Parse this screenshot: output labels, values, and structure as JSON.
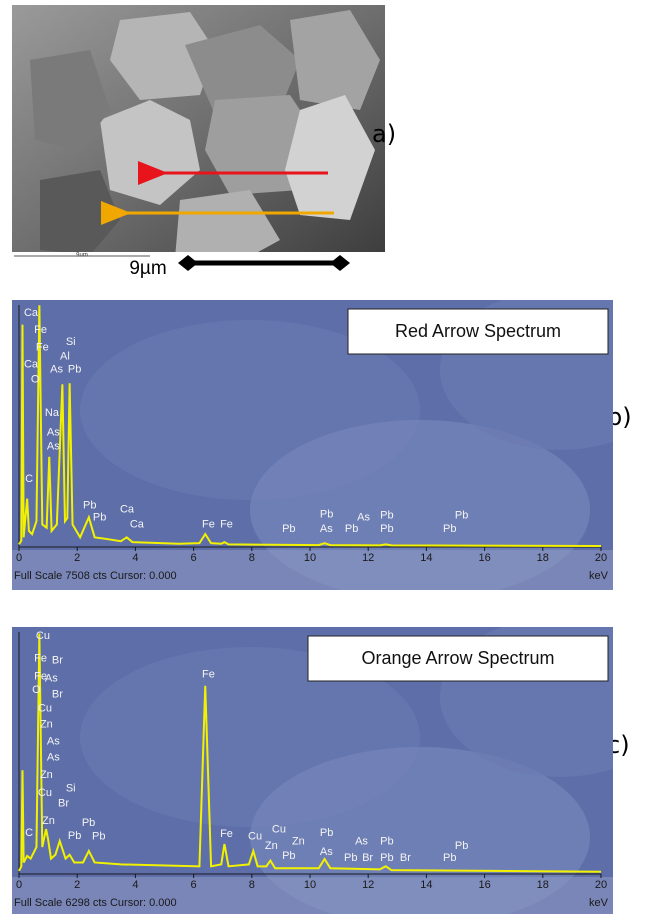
{
  "panels": {
    "a": "a)",
    "b": "b)",
    "c": "c)"
  },
  "sem": {
    "scale_label": "9µm",
    "scale_label_small": "9um"
  },
  "chart_data": [
    {
      "type": "line",
      "title": "Red Arrow Spectrum",
      "footer": "Full Scale 7508 cts Cursor: 0.000",
      "x_label": "keV",
      "xlim": [
        0,
        20
      ],
      "xticks": [
        0,
        2,
        4,
        6,
        8,
        10,
        12,
        14,
        16,
        18,
        20
      ],
      "ylim": [
        0,
        7508
      ],
      "color": "#f2f200",
      "x": [
        0,
        0.08,
        0.12,
        0.16,
        0.22,
        0.28,
        0.34,
        0.45,
        0.6,
        0.7,
        0.8,
        0.95,
        1.04,
        1.12,
        1.3,
        1.49,
        1.58,
        1.66,
        1.74,
        1.84,
        2.1,
        2.4,
        2.6,
        3.0,
        3.5,
        3.7,
        3.9,
        5.5,
        6.2,
        6.4,
        6.6,
        6.95,
        7.06,
        7.2,
        10.3,
        10.5,
        10.7,
        12.4,
        12.6,
        12.8,
        20
      ],
      "values": [
        80,
        200,
        6900,
        300,
        900,
        1500,
        500,
        400,
        800,
        7500,
        700,
        600,
        2800,
        500,
        700,
        5050,
        800,
        900,
        5080,
        700,
        300,
        920,
        300,
        250,
        180,
        300,
        150,
        100,
        120,
        400,
        120,
        100,
        150,
        80,
        60,
        120,
        60,
        50,
        80,
        50,
        30
      ],
      "annotations": [
        {
          "text": "Ca",
          "x": 0.17,
          "y": 7250
        },
        {
          "text": "Fe",
          "x": 0.52,
          "y": 6730
        },
        {
          "text": "Fe",
          "x": 0.58,
          "y": 6180
        },
        {
          "text": "Ca",
          "x": 0.17,
          "y": 5660
        },
        {
          "text": "O",
          "x": 0.41,
          "y": 5200
        },
        {
          "text": "Si",
          "x": 1.61,
          "y": 6360
        },
        {
          "text": "Al",
          "x": 1.41,
          "y": 5910
        },
        {
          "text": "As",
          "x": 1.07,
          "y": 5510
        },
        {
          "text": "Pb",
          "x": 1.68,
          "y": 5510
        },
        {
          "text": "Na",
          "x": 0.89,
          "y": 4160
        },
        {
          "text": "As",
          "x": 0.96,
          "y": 3550
        },
        {
          "text": "As",
          "x": 0.96,
          "y": 3120
        },
        {
          "text": "C",
          "x": 0.21,
          "y": 2110
        },
        {
          "text": "Pb",
          "x": 2.2,
          "y": 1290
        },
        {
          "text": "Pb",
          "x": 2.54,
          "y": 920
        },
        {
          "text": "Ca",
          "x": 3.47,
          "y": 1160
        },
        {
          "text": "Ca",
          "x": 3.81,
          "y": 700
        },
        {
          "text": "Fe",
          "x": 6.29,
          "y": 700
        },
        {
          "text": "Fe",
          "x": 6.91,
          "y": 700
        },
        {
          "text": "Pb",
          "x": 9.04,
          "y": 550
        },
        {
          "text": "Pb",
          "x": 10.34,
          "y": 1010
        },
        {
          "text": "As",
          "x": 10.34,
          "y": 550
        },
        {
          "text": "Pb",
          "x": 11.2,
          "y": 550
        },
        {
          "text": "As",
          "x": 11.62,
          "y": 920
        },
        {
          "text": "Pb",
          "x": 12.41,
          "y": 980
        },
        {
          "text": "Pb",
          "x": 12.41,
          "y": 550
        },
        {
          "text": "Pb",
          "x": 14.98,
          "y": 980
        },
        {
          "text": "Pb",
          "x": 14.57,
          "y": 550
        }
      ]
    },
    {
      "type": "line",
      "title": "Orange Arrow Spectrum",
      "footer": "Full Scale 6298 cts Cursor: 0.000",
      "x_label": "keV",
      "xlim": [
        0,
        20
      ],
      "xticks": [
        0,
        2,
        4,
        6,
        8,
        10,
        12,
        14,
        16,
        18,
        20
      ],
      "ylim": [
        0,
        6298
      ],
      "color": "#f2f200",
      "x": [
        0,
        0.08,
        0.12,
        0.16,
        0.28,
        0.4,
        0.6,
        0.7,
        0.8,
        0.93,
        1.0,
        1.1,
        1.25,
        1.4,
        1.6,
        1.74,
        1.9,
        2.2,
        2.4,
        2.6,
        3.5,
        6.2,
        6.4,
        6.6,
        6.95,
        7.06,
        7.2,
        7.9,
        8.05,
        8.2,
        8.5,
        8.64,
        8.8,
        10.3,
        10.5,
        10.7,
        12.4,
        12.6,
        12.8,
        20
      ],
      "values": [
        80,
        200,
        2700,
        300,
        470,
        400,
        700,
        6260,
        700,
        1170,
        900,
        400,
        500,
        860,
        400,
        500,
        300,
        300,
        600,
        300,
        250,
        200,
        4900,
        200,
        250,
        780,
        200,
        250,
        600,
        200,
        200,
        350,
        150,
        150,
        390,
        150,
        120,
        200,
        100,
        60
      ],
      "annotations": [
        {
          "text": "Cu",
          "x": 0.58,
          "y": 6190
        },
        {
          "text": "Fe",
          "x": 0.52,
          "y": 5610
        },
        {
          "text": "Br",
          "x": 1.13,
          "y": 5560
        },
        {
          "text": "Fe",
          "x": 0.52,
          "y": 5140
        },
        {
          "text": "As",
          "x": 0.89,
          "y": 5090
        },
        {
          "text": "O",
          "x": 0.45,
          "y": 4780
        },
        {
          "text": "Br",
          "x": 1.13,
          "y": 4670
        },
        {
          "text": "Cu",
          "x": 0.65,
          "y": 4310
        },
        {
          "text": "Zn",
          "x": 0.72,
          "y": 3890
        },
        {
          "text": "As",
          "x": 0.96,
          "y": 3450
        },
        {
          "text": "As",
          "x": 0.96,
          "y": 3030
        },
        {
          "text": "Zn",
          "x": 0.72,
          "y": 2580
        },
        {
          "text": "Cu",
          "x": 0.65,
          "y": 2110
        },
        {
          "text": "Si",
          "x": 1.61,
          "y": 2220
        },
        {
          "text": "Br",
          "x": 1.34,
          "y": 1830
        },
        {
          "text": "Zn",
          "x": 0.79,
          "y": 1380
        },
        {
          "text": "Pb",
          "x": 2.16,
          "y": 1330
        },
        {
          "text": "C",
          "x": 0.21,
          "y": 1070
        },
        {
          "text": "Pb",
          "x": 1.68,
          "y": 990
        },
        {
          "text": "Pb",
          "x": 2.51,
          "y": 970
        },
        {
          "text": "Fe",
          "x": 6.29,
          "y": 5190
        },
        {
          "text": "Fe",
          "x": 6.91,
          "y": 1040
        },
        {
          "text": "Cu",
          "x": 7.87,
          "y": 970
        },
        {
          "text": "Cu",
          "x": 8.69,
          "y": 1150
        },
        {
          "text": "Zn",
          "x": 8.45,
          "y": 730
        },
        {
          "text": "Zn",
          "x": 9.38,
          "y": 840
        },
        {
          "text": "Pb",
          "x": 9.04,
          "y": 470
        },
        {
          "text": "Pb",
          "x": 10.34,
          "y": 1070
        },
        {
          "text": "As",
          "x": 10.34,
          "y": 570
        },
        {
          "text": "Pb",
          "x": 11.17,
          "y": 420
        },
        {
          "text": "Br",
          "x": 11.79,
          "y": 420
        },
        {
          "text": "As",
          "x": 11.55,
          "y": 840
        },
        {
          "text": "Pb",
          "x": 12.41,
          "y": 840
        },
        {
          "text": "Pb",
          "x": 12.41,
          "y": 420
        },
        {
          "text": "Br",
          "x": 13.09,
          "y": 420
        },
        {
          "text": "Pb",
          "x": 14.98,
          "y": 730
        },
        {
          "text": "Pb",
          "x": 14.57,
          "y": 420
        }
      ]
    }
  ]
}
